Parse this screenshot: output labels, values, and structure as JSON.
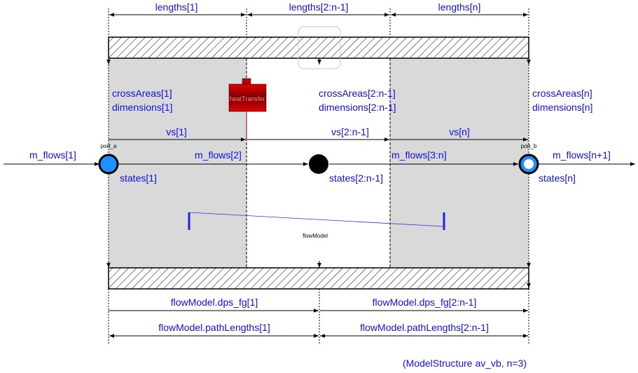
{
  "colors": {
    "label": "#1010e0",
    "shade": "#d9d9d9",
    "port_a_fill": "#1e90ff",
    "port_b_fill": "#ffffff",
    "port_stroke": "#000000",
    "heat_red": "#c80000",
    "flow_line": "#3030e0"
  },
  "dimensions": {
    "lengths_1": "lengths[1]",
    "lengths_mid": "lengths[2:n-1]",
    "lengths_n": "lengths[n]"
  },
  "areas": {
    "cross_1": "crossAreas[1]",
    "dims_1": "dimensions[1]",
    "cross_mid": "crossAreas[2:n-1]",
    "dims_mid": "dimensions[2:n-1]",
    "cross_n": "crossAreas[n]",
    "dims_n": "dimensions[n]"
  },
  "velocities": {
    "vs_1": "vs[1]",
    "vs_mid": "vs[2:n-1]",
    "vs_n": "vs[n]"
  },
  "flows": {
    "m_1": "m_flows[1]",
    "m_2": "m_flows[2]",
    "m_3n": "m_flows[3:n]",
    "m_n1": "m_flows[n+1]"
  },
  "states": {
    "s_1": "states[1]",
    "s_mid": "states[2:n-1]",
    "s_n": "states[n]"
  },
  "ports": {
    "a": "port_a",
    "b": "port_b"
  },
  "components": {
    "heat_transfer": "heatTransfer",
    "flow_model": "flowModel"
  },
  "flow_model_vars": {
    "dps_1": "flowModel.dps_fg[1]",
    "dps_mid": "flowModel.dps_fg[2:n-1]",
    "path_1": "flowModel.pathLengths[1]",
    "path_mid": "flowModel.pathLengths[2:n-1]"
  },
  "caption": "(ModelStructure av_vb, n=3)"
}
